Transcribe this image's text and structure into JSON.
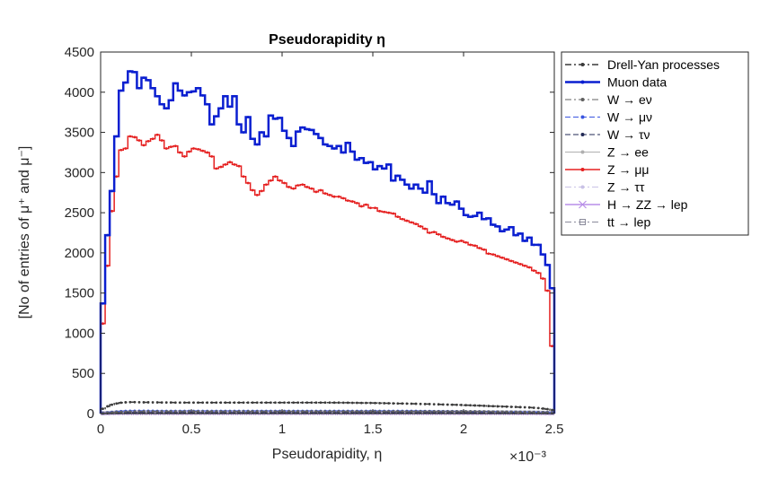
{
  "chart_data": {
    "type": "line",
    "title": "Pseudorapidity η",
    "xlabel": "Pseudorapidity, η",
    "ylabel": "[No of entries of μ⁺ and μ⁻]",
    "x_exponent": "×10⁻³",
    "xlim": [
      0,
      2.5
    ],
    "ylim": [
      0,
      4500
    ],
    "x_ticks": [
      0,
      0.5,
      1,
      1.5,
      2,
      2.5
    ],
    "x_tick_labels": [
      "0",
      "0.5",
      "1",
      "1.5",
      "2",
      "2.5"
    ],
    "y_ticks": [
      0,
      500,
      1000,
      1500,
      2000,
      2500,
      3000,
      3500,
      4000,
      4500
    ],
    "y_tick_labels": [
      "0",
      "500",
      "1000",
      "1500",
      "2000",
      "2500",
      "3000",
      "3500",
      "4000",
      "4500"
    ],
    "grid": false,
    "legend_position": "outside-right-top",
    "bin_width": 0.025,
    "series": [
      {
        "name": "Drell-Yan processes",
        "color": "#3a3a3a",
        "style": "dashdot",
        "marker": "dot",
        "width": 1.5,
        "values": [
          60,
          90,
          110,
          125,
          135,
          140,
          142,
          142,
          141,
          140,
          140,
          139,
          139,
          138,
          138,
          138,
          137,
          137,
          137,
          137,
          137,
          137,
          137,
          137,
          137,
          137,
          137,
          137,
          137,
          137,
          137,
          137,
          137,
          137,
          137,
          137,
          137,
          137,
          137,
          137,
          137,
          137,
          137,
          137,
          137,
          137,
          137,
          137,
          137,
          137,
          137,
          136,
          136,
          135,
          135,
          134,
          134,
          133,
          133,
          132,
          131,
          130,
          129,
          128,
          127,
          126,
          125,
          124,
          123,
          122,
          120,
          119,
          118,
          116,
          115,
          113,
          112,
          110,
          109,
          107,
          105,
          103,
          101,
          99,
          97,
          94,
          92,
          90,
          88,
          86,
          84,
          82,
          80,
          78,
          76,
          72,
          68,
          62,
          55,
          45
        ]
      },
      {
        "name": "Muon data",
        "color": "#0a1fd0",
        "style": "solid",
        "marker": "dot",
        "width": 2.5,
        "values": [
          1370,
          2220,
          2770,
          3450,
          4020,
          4120,
          4260,
          4250,
          4050,
          4180,
          4150,
          4050,
          3950,
          3850,
          3800,
          3900,
          4110,
          4020,
          3960,
          4000,
          4010,
          4050,
          3960,
          3850,
          3600,
          3700,
          3800,
          3950,
          3820,
          3950,
          3600,
          3500,
          3690,
          3420,
          3350,
          3500,
          3450,
          3710,
          3670,
          3680,
          3520,
          3430,
          3330,
          3510,
          3560,
          3540,
          3530,
          3480,
          3430,
          3350,
          3330,
          3300,
          3330,
          3250,
          3370,
          3260,
          3160,
          3180,
          3120,
          3130,
          3040,
          3080,
          3050,
          3100,
          2900,
          2960,
          2910,
          2850,
          2800,
          2850,
          2800,
          2750,
          2890,
          2730,
          2620,
          2700,
          2620,
          2600,
          2640,
          2550,
          2470,
          2450,
          2460,
          2500,
          2420,
          2430,
          2350,
          2330,
          2270,
          2290,
          2320,
          2220,
          2240,
          2150,
          2190,
          2100,
          2100,
          1980,
          1850,
          1560
        ]
      },
      {
        "name": "W → eν",
        "color": "#606060",
        "style": "dashdot",
        "marker": "dot",
        "width": 1,
        "values": [
          5,
          10,
          15,
          20,
          22,
          24,
          25,
          26,
          26,
          27,
          27,
          27,
          27,
          27,
          27,
          27,
          27,
          27,
          27,
          27,
          27,
          27,
          27,
          27,
          27,
          27,
          27,
          27,
          27,
          27,
          27,
          27,
          27,
          27,
          27,
          27,
          27,
          27,
          27,
          27,
          27,
          27,
          27,
          27,
          27,
          27,
          27,
          27,
          27,
          27,
          27,
          27,
          27,
          27,
          27,
          27,
          27,
          27,
          27,
          27,
          27,
          27,
          27,
          27,
          27,
          27,
          27,
          27,
          27,
          27,
          27,
          27,
          27,
          27,
          27,
          27,
          27,
          27,
          27,
          27,
          27,
          27,
          27,
          26,
          26,
          25,
          24,
          24,
          23,
          22,
          22,
          21,
          20,
          20,
          19,
          18,
          17,
          16,
          14,
          10
        ]
      },
      {
        "name": "W → μν",
        "color": "#3a55e0",
        "style": "dashed",
        "marker": "dot",
        "width": 1,
        "values": [
          8,
          14,
          20,
          26,
          30,
          33,
          35,
          35,
          35,
          34,
          34,
          34,
          33,
          33,
          33,
          33,
          33,
          33,
          33,
          33,
          33,
          33,
          33,
          33,
          33,
          33,
          33,
          33,
          33,
          33,
          33,
          33,
          33,
          33,
          33,
          33,
          33,
          33,
          33,
          33,
          33,
          33,
          33,
          33,
          33,
          33,
          33,
          33,
          33,
          33,
          33,
          33,
          33,
          33,
          33,
          33,
          33,
          33,
          33,
          33,
          33,
          33,
          33,
          33,
          33,
          33,
          33,
          33,
          33,
          33,
          32,
          32,
          32,
          31,
          31,
          31,
          30,
          30,
          29,
          29,
          28,
          28,
          27,
          27,
          26,
          26,
          25,
          25,
          24,
          23,
          23,
          22,
          22,
          21,
          20,
          20,
          19,
          18,
          16,
          12
        ]
      },
      {
        "name": "W → τν",
        "color": "#222a55",
        "style": "dashed",
        "marker": "dot",
        "width": 1,
        "values": [
          3,
          5,
          7,
          9,
          10,
          11,
          11,
          12,
          12,
          12,
          12,
          12,
          12,
          12,
          12,
          12,
          12,
          12,
          12,
          12,
          12,
          12,
          12,
          12,
          12,
          12,
          12,
          12,
          12,
          12,
          12,
          12,
          12,
          12,
          12,
          12,
          12,
          12,
          12,
          12,
          12,
          12,
          12,
          12,
          12,
          12,
          12,
          12,
          12,
          12,
          12,
          12,
          12,
          12,
          12,
          12,
          12,
          12,
          12,
          12,
          12,
          12,
          12,
          12,
          12,
          12,
          12,
          12,
          12,
          12,
          12,
          12,
          12,
          12,
          12,
          12,
          12,
          12,
          12,
          12,
          12,
          12,
          11,
          11,
          11,
          11,
          11,
          10,
          10,
          10,
          10,
          9,
          9,
          9,
          8,
          8,
          8,
          7,
          6,
          5
        ]
      },
      {
        "name": "Z → ee",
        "color": "#b0b0b0",
        "style": "solid",
        "marker": "dot",
        "width": 1,
        "values": [
          2,
          3,
          4,
          5,
          6,
          6,
          7,
          7,
          7,
          7,
          7,
          7,
          7,
          7,
          7,
          7,
          7,
          7,
          7,
          7,
          7,
          7,
          7,
          7,
          7,
          7,
          7,
          7,
          7,
          7,
          7,
          7,
          7,
          7,
          7,
          7,
          7,
          7,
          7,
          7,
          7,
          7,
          7,
          7,
          7,
          7,
          7,
          7,
          7,
          7,
          7,
          7,
          7,
          7,
          7,
          7,
          7,
          7,
          7,
          7,
          7,
          7,
          7,
          7,
          7,
          7,
          7,
          7,
          7,
          7,
          7,
          7,
          7,
          7,
          7,
          7,
          7,
          7,
          7,
          7,
          7,
          7,
          7,
          6,
          6,
          6,
          6,
          6,
          6,
          6,
          5,
          5,
          5,
          5,
          5,
          5,
          5,
          4,
          4,
          3
        ]
      },
      {
        "name": "Z → μμ",
        "color": "#e52020",
        "style": "solid",
        "marker": "dot",
        "width": 1.5,
        "values": [
          1120,
          1840,
          2520,
          2950,
          3280,
          3300,
          3450,
          3440,
          3400,
          3340,
          3390,
          3420,
          3470,
          3400,
          3300,
          3320,
          3330,
          3250,
          3200,
          3260,
          3300,
          3290,
          3270,
          3250,
          3200,
          3050,
          3070,
          3100,
          3130,
          3100,
          3080,
          2950,
          2870,
          2780,
          2720,
          2770,
          2850,
          2900,
          2950,
          2900,
          2870,
          2820,
          2800,
          2840,
          2850,
          2820,
          2800,
          2760,
          2780,
          2740,
          2720,
          2700,
          2700,
          2680,
          2650,
          2640,
          2620,
          2580,
          2600,
          2560,
          2560,
          2520,
          2510,
          2500,
          2490,
          2450,
          2420,
          2400,
          2380,
          2360,
          2330,
          2300,
          2250,
          2260,
          2230,
          2200,
          2180,
          2160,
          2140,
          2150,
          2130,
          2100,
          2090,
          2060,
          2040,
          1990,
          1980,
          1960,
          1940,
          1920,
          1900,
          1880,
          1860,
          1840,
          1820,
          1780,
          1750,
          1680,
          1530,
          840
        ]
      },
      {
        "name": "Z → ττ",
        "color": "#c9c2e6",
        "style": "dashdot",
        "marker": "dot",
        "width": 1,
        "values": [
          1,
          2,
          2,
          3,
          3,
          3,
          3,
          3,
          3,
          3,
          3,
          3,
          3,
          3,
          3,
          3,
          3,
          3,
          3,
          3,
          3,
          3,
          3,
          3,
          3,
          3,
          3,
          3,
          3,
          3,
          3,
          3,
          3,
          3,
          3,
          3,
          3,
          3,
          3,
          3,
          3,
          3,
          3,
          3,
          3,
          3,
          3,
          3,
          3,
          3,
          3,
          3,
          3,
          3,
          3,
          3,
          3,
          3,
          3,
          3,
          3,
          3,
          3,
          3,
          3,
          3,
          3,
          3,
          3,
          3,
          3,
          3,
          3,
          3,
          3,
          3,
          3,
          3,
          3,
          3,
          3,
          3,
          3,
          3,
          3,
          3,
          3,
          3,
          3,
          3,
          3,
          2,
          2,
          2,
          2,
          2,
          2,
          2,
          2,
          1
        ]
      },
      {
        "name": "H → ZZ → lep",
        "color": "#b88ee8",
        "style": "solid",
        "marker": "x",
        "width": 1.5,
        "values": [
          1,
          1,
          2,
          2,
          2,
          2,
          2,
          2,
          2,
          2,
          2,
          2,
          2,
          2,
          2,
          2,
          2,
          2,
          2,
          2,
          2,
          2,
          2,
          2,
          2,
          2,
          2,
          2,
          2,
          2,
          2,
          2,
          2,
          2,
          2,
          2,
          2,
          2,
          2,
          2,
          2,
          2,
          2,
          2,
          2,
          2,
          2,
          2,
          2,
          2,
          2,
          2,
          2,
          2,
          2,
          2,
          2,
          2,
          2,
          2,
          2,
          2,
          2,
          2,
          2,
          2,
          2,
          2,
          2,
          2,
          2,
          2,
          2,
          2,
          2,
          2,
          2,
          2,
          2,
          2,
          2,
          2,
          2,
          2,
          2,
          2,
          2,
          2,
          2,
          2,
          2,
          2,
          2,
          2,
          2,
          2,
          1,
          1,
          1,
          1
        ]
      },
      {
        "name": "tt → lep",
        "color": "#8a8a9a",
        "style": "dashdot",
        "marker": "square",
        "width": 1,
        "values": [
          4,
          7,
          10,
          13,
          15,
          16,
          17,
          17,
          17,
          17,
          17,
          17,
          17,
          17,
          17,
          17,
          17,
          17,
          17,
          17,
          17,
          17,
          17,
          17,
          17,
          17,
          17,
          17,
          17,
          17,
          17,
          17,
          17,
          17,
          17,
          17,
          17,
          17,
          17,
          17,
          17,
          17,
          17,
          17,
          17,
          17,
          17,
          17,
          17,
          17,
          17,
          17,
          17,
          17,
          17,
          17,
          17,
          17,
          17,
          17,
          17,
          17,
          17,
          17,
          17,
          17,
          17,
          17,
          17,
          17,
          17,
          17,
          17,
          16,
          16,
          16,
          16,
          16,
          16,
          16,
          15,
          15,
          15,
          15,
          15,
          14,
          14,
          14,
          14,
          13,
          13,
          13,
          12,
          12,
          12,
          11,
          11,
          10,
          9,
          7
        ]
      }
    ]
  }
}
